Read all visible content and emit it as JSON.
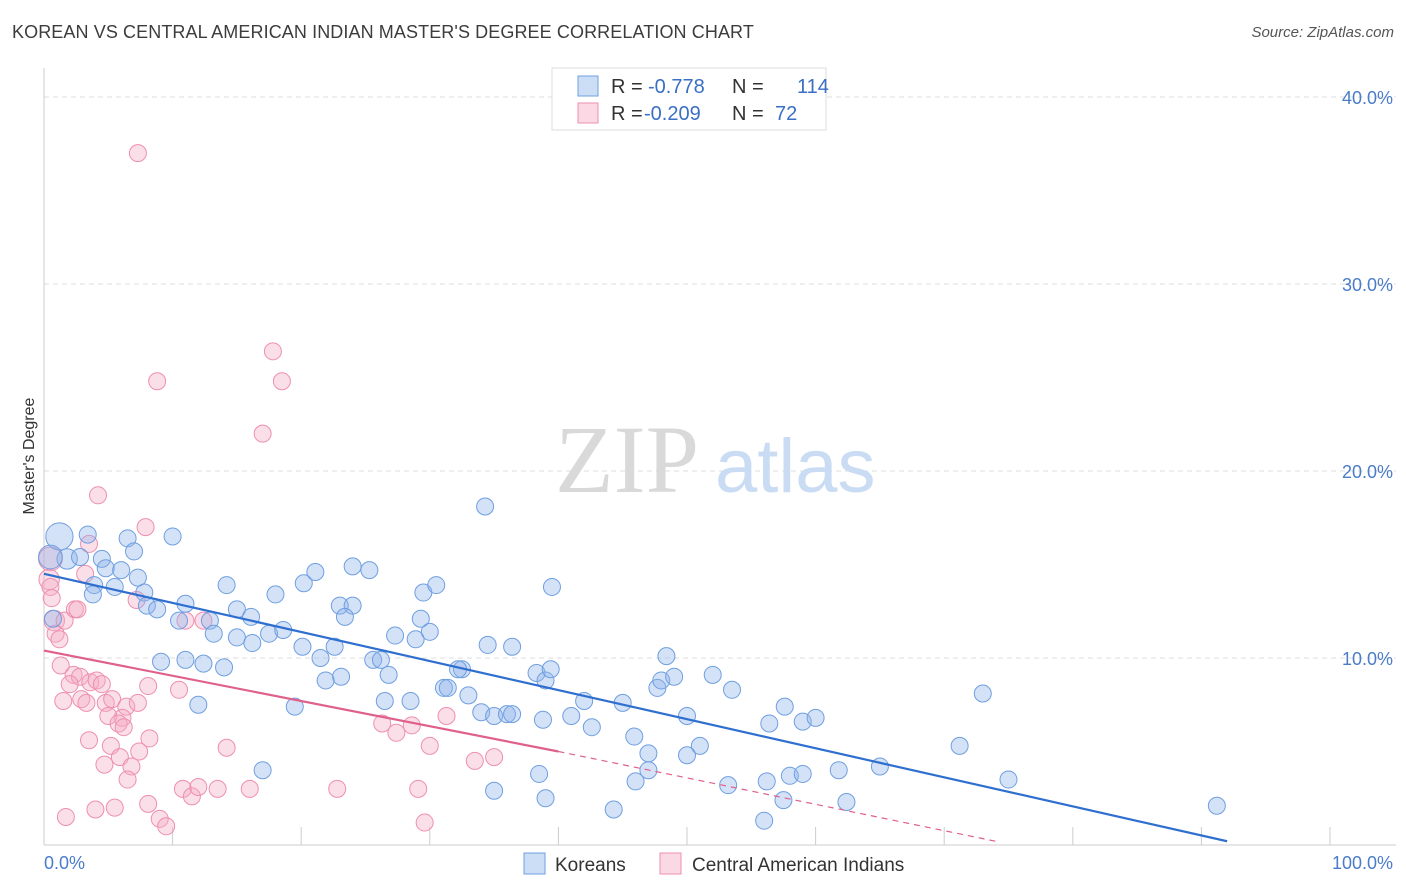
{
  "title": "KOREAN VS CENTRAL AMERICAN INDIAN MASTER'S DEGREE CORRELATION CHART",
  "source": "Source: ZipAtlas.com",
  "watermark": {
    "zip": "ZIP",
    "atlas": "atlas"
  },
  "colors": {
    "blue": "#6f9fe0",
    "blue_fill": "rgba(141,180,235,0.38)",
    "blue_line": "#2f6fd0",
    "pink": "#ee8fb0",
    "pink_fill": "rgba(245,170,195,0.38)",
    "pink_line": "#e0608c",
    "grid": "#dddddd",
    "axis_text": "#4a7cc9"
  },
  "legend": {
    "rows": [
      {
        "r_label": "R =",
        "r_value": "-0.778",
        "n_label": "N =",
        "n_value": "114",
        "series": "blue"
      },
      {
        "r_label": "R =",
        "r_value": "-0.209",
        "n_label": "N =",
        "n_value": "72",
        "series": "pink"
      }
    ]
  },
  "chart_data": {
    "type": "scatter",
    "ylabel": "Master's Degree",
    "xlabel": "",
    "x_tick_labels": [
      "0.0%",
      "100.0%"
    ],
    "y_tick_labels": [
      "10.0%",
      "20.0%",
      "30.0%",
      "40.0%"
    ],
    "xlim": [
      0,
      100
    ],
    "ylim": [
      0,
      40
    ],
    "y_ticks": [
      10,
      20,
      30,
      40
    ],
    "grid": true,
    "legend_position": "top-center",
    "series": [
      {
        "name": "Koreans",
        "color": "blue",
        "trend": {
          "x0": 0,
          "y0": 14.5,
          "x1": 92,
          "y1": 0.2,
          "dashed_to": null
        },
        "points": [
          [
            1.2,
            16.5,
            1.6
          ],
          [
            1.8,
            15.3,
            1.2
          ],
          [
            0.5,
            15.4,
            1.4
          ],
          [
            3.4,
            16.6,
            1
          ],
          [
            4.5,
            15.3,
            1
          ],
          [
            2.8,
            15.4,
            1
          ],
          [
            6.5,
            16.4,
            1
          ],
          [
            10,
            16.5,
            1
          ],
          [
            7,
            15.7,
            1
          ],
          [
            4.8,
            14.8,
            1
          ],
          [
            6,
            14.7,
            1
          ],
          [
            5.5,
            13.8,
            1
          ],
          [
            3.9,
            13.9,
            1
          ],
          [
            3.8,
            13.4,
            1
          ],
          [
            7.8,
            13.5,
            1
          ],
          [
            7.3,
            14.3,
            1
          ],
          [
            8,
            12.8,
            1
          ],
          [
            8.8,
            12.6,
            1
          ],
          [
            11,
            12.9,
            1
          ],
          [
            10.5,
            12.0,
            1
          ],
          [
            14.2,
            13.9,
            1
          ],
          [
            15,
            12.6,
            1
          ],
          [
            12.9,
            12.0,
            1
          ],
          [
            16.1,
            12.2,
            1
          ],
          [
            17.5,
            11.3,
            1
          ],
          [
            18.6,
            11.5,
            1
          ],
          [
            15,
            11.1,
            1
          ],
          [
            13.2,
            11.3,
            1
          ],
          [
            0.7,
            12.1,
            1
          ],
          [
            18,
            13.4,
            1
          ],
          [
            20.2,
            14.0,
            1
          ],
          [
            21.1,
            14.6,
            1
          ],
          [
            24,
            14.9,
            1
          ],
          [
            25.3,
            14.7,
            1
          ],
          [
            23,
            12.8,
            1
          ],
          [
            24,
            12.8,
            1
          ],
          [
            23.4,
            12.2,
            1
          ],
          [
            20.1,
            10.6,
            1
          ],
          [
            22.6,
            10.6,
            1
          ],
          [
            21.5,
            10.0,
            1
          ],
          [
            16.2,
            10.8,
            1
          ],
          [
            9.1,
            9.8,
            1
          ],
          [
            11,
            9.9,
            1
          ],
          [
            12.4,
            9.7,
            1
          ],
          [
            14,
            9.5,
            1
          ],
          [
            25.6,
            9.9,
            1
          ],
          [
            26.2,
            9.9,
            1
          ],
          [
            23.1,
            9.0,
            1
          ],
          [
            27.3,
            11.2,
            1
          ],
          [
            28.9,
            11.0,
            1
          ],
          [
            29.3,
            12.1,
            1
          ],
          [
            29.5,
            13.5,
            1
          ],
          [
            30,
            11.4,
            1
          ],
          [
            21.9,
            8.8,
            1
          ],
          [
            26.8,
            9.1,
            1
          ],
          [
            31.1,
            8.4,
            1
          ],
          [
            31.4,
            8.4,
            1
          ],
          [
            32.5,
            9.4,
            1
          ],
          [
            32.2,
            9.4,
            1
          ],
          [
            33,
            8.0,
            1
          ],
          [
            28.5,
            7.7,
            1
          ],
          [
            34,
            7.1,
            1
          ],
          [
            34.5,
            10.7,
            1
          ],
          [
            36.4,
            10.6,
            1
          ],
          [
            35,
            6.9,
            1
          ],
          [
            36,
            7.0,
            1
          ],
          [
            36.4,
            7.0,
            1
          ],
          [
            38.3,
            9.2,
            1
          ],
          [
            39,
            8.8,
            1
          ],
          [
            39.4,
            9.4,
            1
          ],
          [
            38.8,
            6.7,
            1
          ],
          [
            41,
            6.9,
            1
          ],
          [
            42,
            7.7,
            1
          ],
          [
            42.6,
            6.3,
            1
          ],
          [
            45,
            7.6,
            1
          ],
          [
            45.9,
            5.8,
            1
          ],
          [
            47.7,
            8.4,
            1
          ],
          [
            48,
            8.8,
            1
          ],
          [
            48.4,
            10.1,
            1
          ],
          [
            49,
            9.0,
            1
          ],
          [
            50,
            6.9,
            1
          ],
          [
            52,
            9.1,
            1
          ],
          [
            53.5,
            8.3,
            1
          ],
          [
            51,
            5.3,
            1
          ],
          [
            50,
            4.8,
            1
          ],
          [
            56.4,
            6.5,
            1
          ],
          [
            57.6,
            7.4,
            1
          ],
          [
            59,
            6.6,
            1
          ],
          [
            60,
            6.8,
            1
          ],
          [
            58,
            3.7,
            1
          ],
          [
            59,
            3.8,
            1
          ],
          [
            61.8,
            4.0,
            1
          ],
          [
            57.5,
            2.4,
            1
          ],
          [
            62.4,
            2.3,
            1
          ],
          [
            56,
            1.3,
            1
          ],
          [
            65,
            4.2,
            1
          ],
          [
            71.2,
            5.3,
            1
          ],
          [
            73,
            8.1,
            1
          ],
          [
            75,
            3.5,
            1
          ],
          [
            91.2,
            2.1,
            1
          ],
          [
            56.2,
            3.4,
            1
          ],
          [
            53.2,
            3.2,
            1
          ],
          [
            47,
            4.9,
            1
          ],
          [
            46,
            3.4,
            1
          ],
          [
            38.5,
            3.8,
            1
          ],
          [
            44.3,
            1.9,
            1
          ],
          [
            39,
            2.5,
            1
          ],
          [
            35,
            2.9,
            1
          ],
          [
            39.5,
            13.8,
            1
          ],
          [
            30.5,
            13.9,
            1
          ],
          [
            17,
            4.0,
            1
          ],
          [
            12,
            7.5,
            1
          ],
          [
            19.5,
            7.4,
            1
          ],
          [
            26.5,
            7.7,
            1
          ],
          [
            34.3,
            18.1,
            1
          ],
          [
            47,
            4.0,
            1
          ]
        ]
      },
      {
        "name": "Central American Indians",
        "color": "pink",
        "trend": {
          "x0": 0,
          "y0": 10.4,
          "x1": 40,
          "y1": 5.0,
          "dashed_to": {
            "x": 74,
            "y": 0.2
          }
        },
        "points": [
          [
            0.5,
            15.3,
            1.4
          ],
          [
            0.4,
            14.2,
            1.2
          ],
          [
            0.5,
            13.8,
            1
          ],
          [
            0.6,
            13.2,
            1
          ],
          [
            0.8,
            12.0,
            1.2
          ],
          [
            0.9,
            11.3,
            1
          ],
          [
            1.6,
            12.0,
            1
          ],
          [
            2.4,
            12.6,
            1
          ],
          [
            3.2,
            14.5,
            1
          ],
          [
            3.5,
            16.1,
            1
          ],
          [
            4.2,
            18.7,
            1
          ],
          [
            2.6,
            12.6,
            1
          ],
          [
            1.2,
            11.0,
            1
          ],
          [
            1.3,
            9.6,
            1
          ],
          [
            2.3,
            9.1,
            1
          ],
          [
            2.8,
            9.0,
            1
          ],
          [
            2,
            8.6,
            1
          ],
          [
            3.6,
            8.7,
            1
          ],
          [
            4.1,
            8.8,
            1
          ],
          [
            4.5,
            8.6,
            1
          ],
          [
            2.9,
            7.8,
            1
          ],
          [
            1.5,
            7.7,
            1
          ],
          [
            3.3,
            7.6,
            1
          ],
          [
            4.8,
            7.6,
            1
          ],
          [
            5.3,
            7.8,
            1
          ],
          [
            6.4,
            7.4,
            1
          ],
          [
            7.3,
            7.6,
            1
          ],
          [
            8.1,
            8.5,
            1
          ],
          [
            6.1,
            6.8,
            1
          ],
          [
            5,
            6.9,
            1
          ],
          [
            5.8,
            6.5,
            1
          ],
          [
            6.2,
            6.3,
            1
          ],
          [
            3.5,
            5.6,
            1
          ],
          [
            5.2,
            5.3,
            1
          ],
          [
            7.4,
            5.0,
            1
          ],
          [
            8.2,
            5.7,
            1
          ],
          [
            4.7,
            4.3,
            1
          ],
          [
            5.9,
            4.7,
            1
          ],
          [
            6.8,
            4.2,
            1
          ],
          [
            8.1,
            2.2,
            1
          ],
          [
            9,
            1.4,
            1
          ],
          [
            9.5,
            1.0,
            1
          ],
          [
            6.5,
            3.5,
            1
          ],
          [
            4,
            1.9,
            1
          ],
          [
            10.8,
            3.0,
            1
          ],
          [
            11.5,
            2.6,
            1
          ],
          [
            12,
            3.1,
            1
          ],
          [
            13.5,
            3.0,
            1
          ],
          [
            10.5,
            8.3,
            1
          ],
          [
            11,
            12.0,
            1
          ],
          [
            12.4,
            12.0,
            1
          ],
          [
            14.2,
            5.2,
            1
          ],
          [
            17,
            22,
            1
          ],
          [
            17.8,
            26.4,
            1
          ],
          [
            18.5,
            24.8,
            1
          ],
          [
            8.8,
            24.8,
            1
          ],
          [
            7.3,
            37.0,
            1
          ],
          [
            7.9,
            17.0,
            1
          ],
          [
            7.2,
            13.1,
            1
          ],
          [
            22.8,
            3.0,
            1
          ],
          [
            27.4,
            6.0,
            1
          ],
          [
            28.6,
            6.4,
            1
          ],
          [
            30,
            5.3,
            1
          ],
          [
            31.3,
            6.9,
            1
          ],
          [
            33.5,
            4.5,
            1
          ],
          [
            35,
            4.7,
            1
          ],
          [
            26.3,
            6.5,
            1
          ],
          [
            29.1,
            3.0,
            1
          ],
          [
            29.6,
            1.2,
            1
          ],
          [
            16,
            3.0,
            1
          ],
          [
            5.5,
            2.0,
            1
          ],
          [
            1.7,
            1.5,
            1
          ]
        ]
      }
    ]
  },
  "bottom_legend": [
    {
      "label": "Koreans",
      "series": "blue"
    },
    {
      "label": "Central American Indians",
      "series": "pink"
    }
  ]
}
